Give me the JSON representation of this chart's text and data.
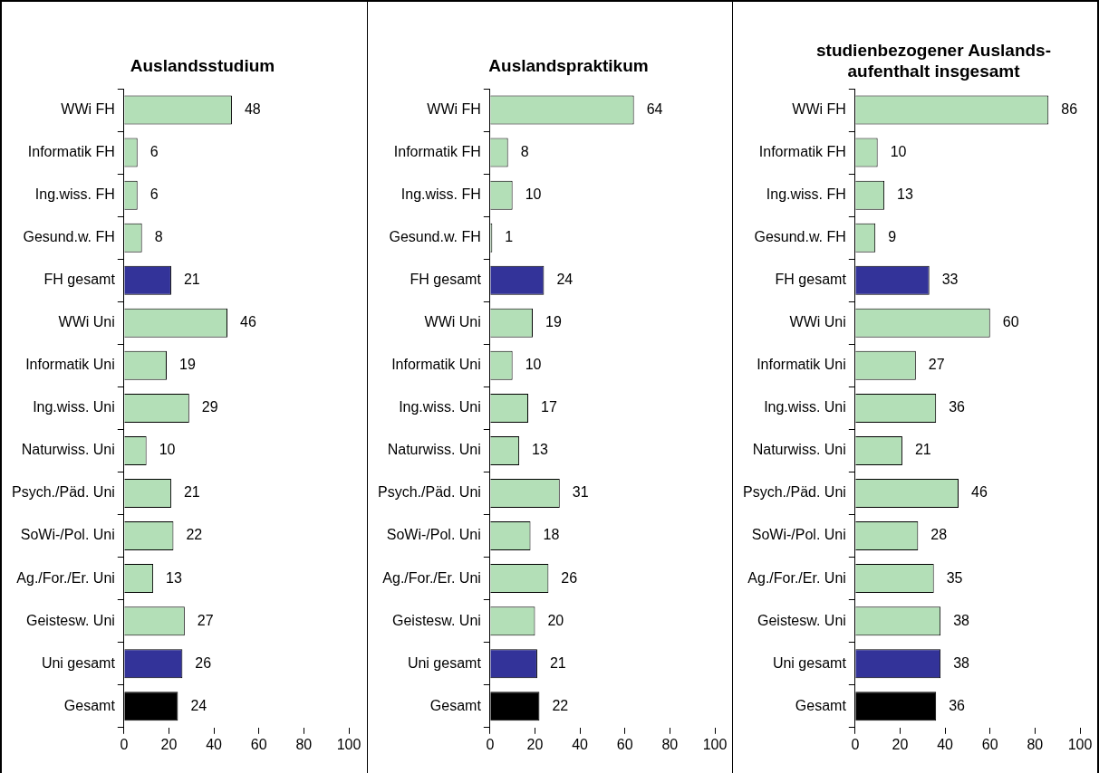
{
  "chart_data": [
    {
      "type": "bar",
      "orientation": "horizontal",
      "title": "Auslandsstudium",
      "categories": [
        "WWi FH",
        "Informatik FH",
        "Ing.wiss. FH",
        "Gesund.w. FH",
        "FH gesamt",
        "WWi Uni",
        "Informatik Uni",
        "Ing.wiss. Uni",
        "Naturwiss. Uni",
        "Psych./Päd. Uni",
        "SoWi-/Pol. Uni",
        "Ag./For./Er. Uni",
        "Geistesw. Uni",
        "Uni gesamt",
        "Gesamt"
      ],
      "values": [
        48,
        6,
        6,
        8,
        21,
        46,
        19,
        29,
        10,
        21,
        22,
        13,
        27,
        26,
        24
      ],
      "colors": [
        "#b3dfb7",
        "#b3dfb7",
        "#b3dfb7",
        "#b3dfb7",
        "#333399",
        "#b3dfb7",
        "#b3dfb7",
        "#b3dfb7",
        "#b3dfb7",
        "#b3dfb7",
        "#b3dfb7",
        "#b3dfb7",
        "#b3dfb7",
        "#333399",
        "#000000"
      ],
      "xlim": [
        0,
        100
      ],
      "xticks": [
        0,
        20,
        40,
        60,
        80,
        100
      ],
      "data_labels": true,
      "grid": false,
      "legend": false
    },
    {
      "type": "bar",
      "orientation": "horizontal",
      "title": "Auslandspraktikum",
      "categories": [
        "WWi FH",
        "Informatik FH",
        "Ing.wiss. FH",
        "Gesund.w. FH",
        "FH gesamt",
        "WWi Uni",
        "Informatik Uni",
        "Ing.wiss. Uni",
        "Naturwiss. Uni",
        "Psych./Päd. Uni",
        "SoWi-/Pol. Uni",
        "Ag./For./Er. Uni",
        "Geistesw. Uni",
        "Uni gesamt",
        "Gesamt"
      ],
      "values": [
        64,
        8,
        10,
        1,
        24,
        19,
        10,
        17,
        13,
        31,
        18,
        26,
        20,
        21,
        22
      ],
      "colors": [
        "#b3dfb7",
        "#b3dfb7",
        "#b3dfb7",
        "#b3dfb7",
        "#333399",
        "#b3dfb7",
        "#b3dfb7",
        "#b3dfb7",
        "#b3dfb7",
        "#b3dfb7",
        "#b3dfb7",
        "#b3dfb7",
        "#b3dfb7",
        "#333399",
        "#000000"
      ],
      "xlim": [
        0,
        100
      ],
      "xticks": [
        0,
        20,
        40,
        60,
        80,
        100
      ],
      "data_labels": true,
      "grid": false,
      "legend": false
    },
    {
      "type": "bar",
      "orientation": "horizontal",
      "title": "studienbezogener Auslands-\naufenthalt insgesamt",
      "categories": [
        "WWi FH",
        "Informatik FH",
        "Ing.wiss. FH",
        "Gesund.w. FH",
        "FH gesamt",
        "WWi Uni",
        "Informatik Uni",
        "Ing.wiss. Uni",
        "Naturwiss. Uni",
        "Psych./Päd. Uni",
        "SoWi-/Pol. Uni",
        "Ag./For./Er. Uni",
        "Geistesw. Uni",
        "Uni gesamt",
        "Gesamt"
      ],
      "values": [
        86,
        10,
        13,
        9,
        33,
        60,
        27,
        36,
        21,
        46,
        28,
        35,
        38,
        38,
        36
      ],
      "colors": [
        "#b3dfb7",
        "#b3dfb7",
        "#b3dfb7",
        "#b3dfb7",
        "#333399",
        "#b3dfb7",
        "#b3dfb7",
        "#b3dfb7",
        "#b3dfb7",
        "#b3dfb7",
        "#b3dfb7",
        "#b3dfb7",
        "#b3dfb7",
        "#333399",
        "#000000"
      ],
      "xlim": [
        0,
        100
      ],
      "xticks": [
        0,
        20,
        40,
        60,
        80,
        100
      ],
      "data_labels": true,
      "grid": false,
      "legend": false
    }
  ]
}
